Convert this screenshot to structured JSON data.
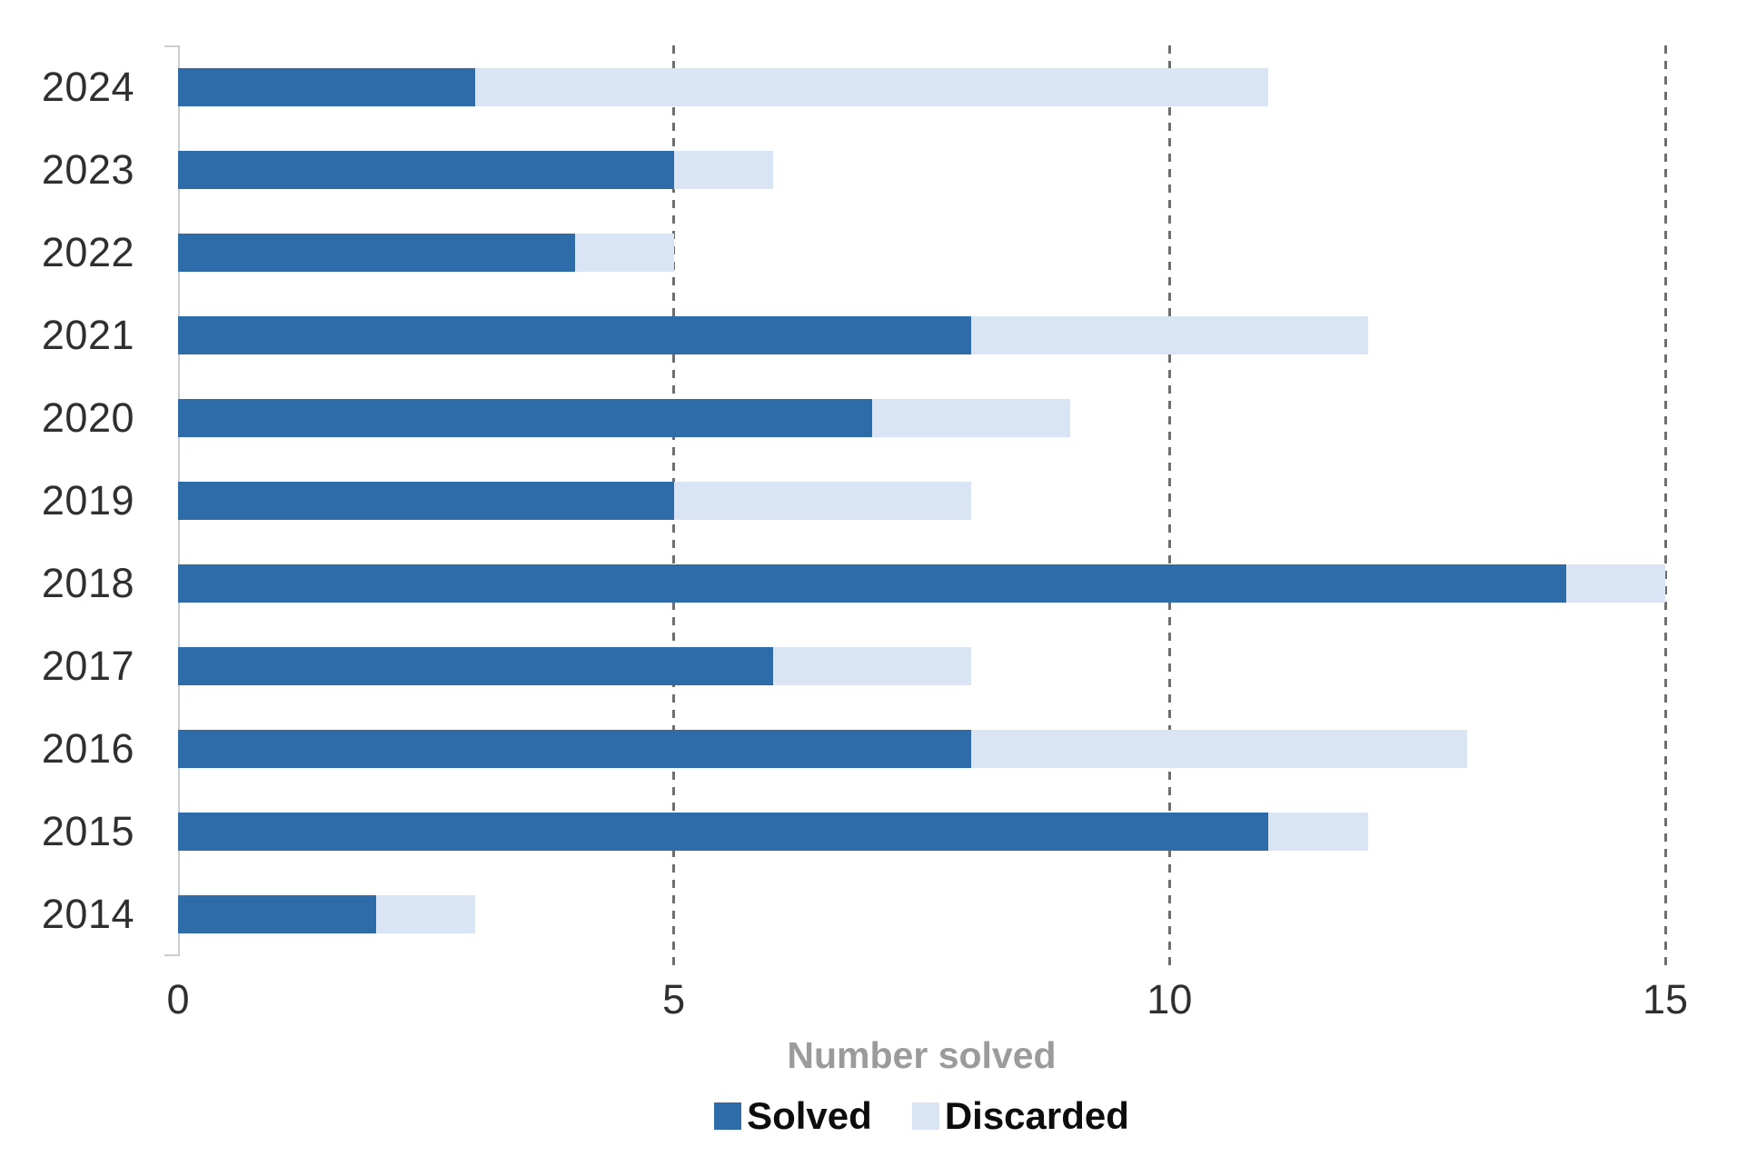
{
  "chart_data": {
    "type": "bar",
    "orientation": "horizontal",
    "stacked": true,
    "title": "",
    "xlabel": "Number solved",
    "ylabel": "",
    "xlim": [
      0,
      15
    ],
    "xticks": [
      0,
      5,
      10,
      15
    ],
    "gridlines": {
      "style": "dashed-vertical",
      "at": [
        5,
        10,
        15
      ],
      "color": "#6e6e6e"
    },
    "legend_position": "bottom",
    "categories": [
      "2024",
      "2023",
      "2022",
      "2021",
      "2020",
      "2019",
      "2018",
      "2017",
      "2016",
      "2015",
      "2014"
    ],
    "series": [
      {
        "name": "Solved",
        "color": "#2d6ca9",
        "values": [
          3,
          5,
          4,
          8,
          7,
          5,
          14,
          6,
          8,
          11,
          2
        ]
      },
      {
        "name": "Discarded",
        "color": "#d9e5f4",
        "values": [
          8,
          1,
          1,
          4,
          2,
          3,
          1,
          2,
          5,
          1,
          1
        ]
      }
    ],
    "totals": [
      11,
      6,
      5,
      12,
      9,
      8,
      15,
      8,
      13,
      12,
      3
    ]
  },
  "legend": {
    "items": [
      {
        "label": "Solved",
        "color": "#2d6ca9"
      },
      {
        "label": "Discarded",
        "color": "#d9e5f4"
      }
    ]
  },
  "colors": {
    "solved": "#2d6ca9",
    "discarded": "#d9e5f4",
    "axis_line": "#c9ced3",
    "gridline": "#6e6e6e",
    "tick_label": "#2f2f2f",
    "axis_title": "#9b9b9b",
    "legend_text": "#0d0d0d",
    "background": "#ffffff"
  }
}
